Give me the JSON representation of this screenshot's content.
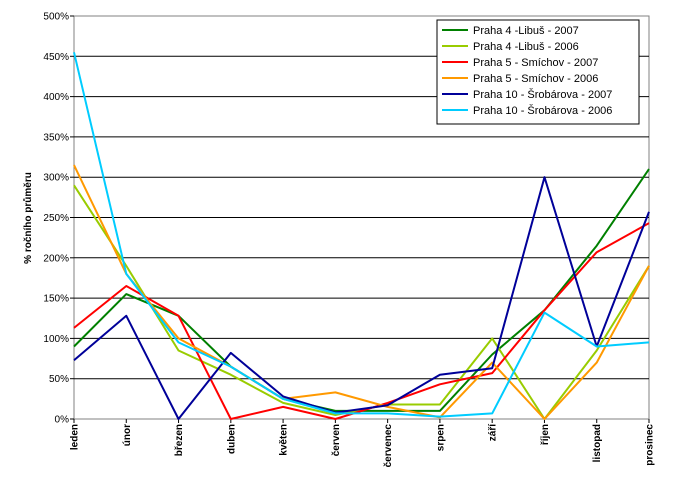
{
  "chart_data": {
    "type": "line",
    "title": "",
    "xlabel": "",
    "ylabel": "% ročního průměru",
    "categories": [
      "leden",
      "únor",
      "březen",
      "duben",
      "květen",
      "červen",
      "červenec",
      "srpen",
      "září",
      "říjen",
      "listopad",
      "prosinec"
    ],
    "y_ticks": [
      "0%",
      "50%",
      "100%",
      "150%",
      "200%",
      "250%",
      "300%",
      "350%",
      "400%",
      "450%",
      "500%"
    ],
    "ylim": [
      0,
      500
    ],
    "grid": "horizontal",
    "legend_position": "top-right",
    "series": [
      {
        "name": "Praha 4 -Libuš - 2007",
        "color": "#008000",
        "values": [
          90,
          155,
          128,
          65,
          25,
          10,
          10,
          10,
          80,
          135,
          215,
          310
        ]
      },
      {
        "name": "Praha 4 -Libuš - 2006",
        "color": "#99cc00",
        "values": [
          290,
          190,
          85,
          55,
          20,
          5,
          18,
          18,
          100,
          0,
          85,
          190
        ]
      },
      {
        "name": "Praha 5 - Smíchov - 2007",
        "color": "#ff0000",
        "values": [
          113,
          165,
          128,
          0,
          15,
          0,
          20,
          43,
          57,
          135,
          207,
          243
        ]
      },
      {
        "name": "Praha 5 - Smíchov - 2006",
        "color": "#ff9900",
        "values": [
          315,
          180,
          100,
          65,
          25,
          33,
          15,
          2,
          70,
          0,
          70,
          190
        ]
      },
      {
        "name": "Praha 10 - Šrobárova - 2007",
        "color": "#000099",
        "values": [
          73,
          128,
          0,
          82,
          28,
          8,
          17,
          55,
          63,
          300,
          90,
          257
        ]
      },
      {
        "name": "Praha 10 - Šrobárova - 2006",
        "color": "#00ccff",
        "values": [
          455,
          180,
          95,
          65,
          25,
          7,
          7,
          3,
          7,
          132,
          90,
          95
        ]
      }
    ]
  }
}
